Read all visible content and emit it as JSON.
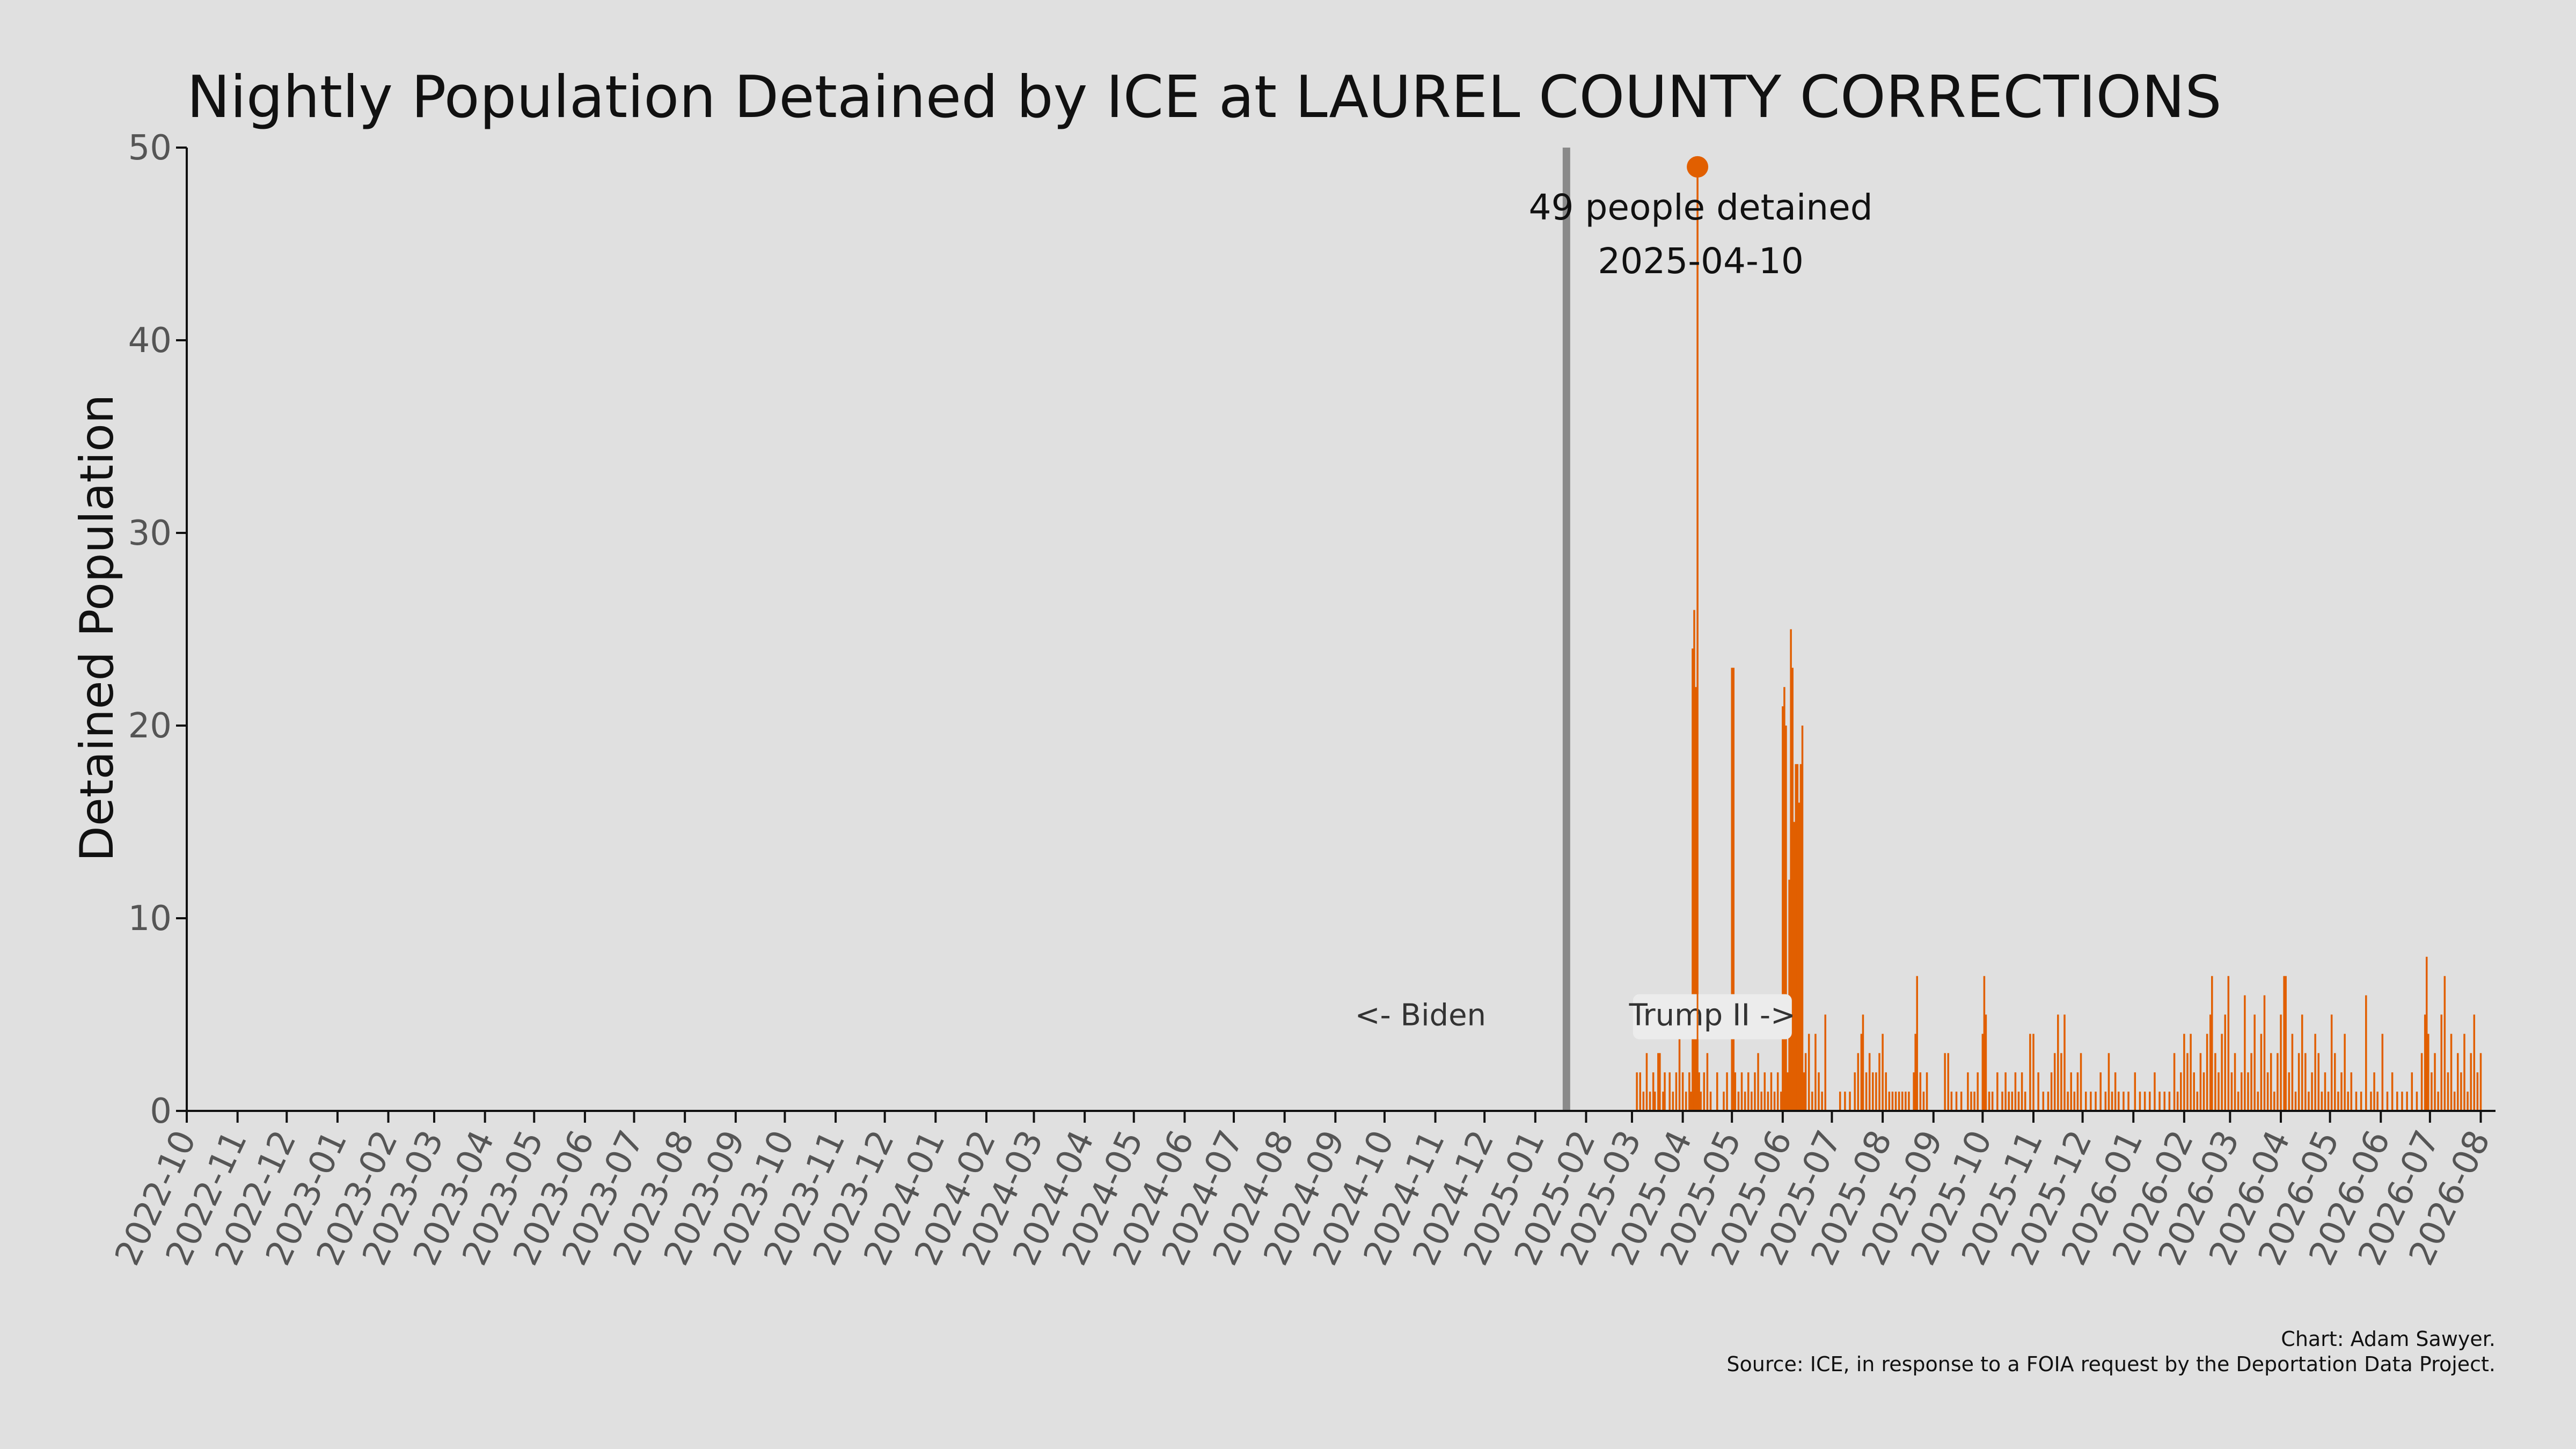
{
  "chart_data": {
    "type": "bar",
    "title": "Nightly Population Detained by ICE at LAUREL COUNTY CORRECTIONS",
    "xlabel": "",
    "ylabel": "Detained Population",
    "ylim": [
      0,
      50
    ],
    "yticks": [
      0,
      10,
      20,
      30,
      40,
      50
    ],
    "xlim": [
      "2022-10-01",
      "2026-08-10"
    ],
    "xticks": [
      "2022-10",
      "2022-11",
      "2022-12",
      "2023-01",
      "2023-02",
      "2023-03",
      "2023-04",
      "2023-05",
      "2023-06",
      "2023-07",
      "2023-08",
      "2023-09",
      "2023-10",
      "2023-11",
      "2023-12",
      "2024-01",
      "2024-02",
      "2024-03",
      "2024-04",
      "2024-05",
      "2024-06",
      "2024-07",
      "2024-08",
      "2024-09",
      "2024-10",
      "2024-11",
      "2024-12",
      "2025-01",
      "2025-02",
      "2025-03",
      "2025-04",
      "2025-05",
      "2025-06",
      "2025-07",
      "2025-08",
      "2025-09",
      "2025-10",
      "2025-11",
      "2025-12",
      "2026-01",
      "2026-02",
      "2026-03",
      "2026-04",
      "2026-05",
      "2026-06",
      "2026-07",
      "2026-08"
    ],
    "grid": false,
    "bar_color": "#e15f00",
    "divider": {
      "date": "2025-01-20",
      "color": "#8a8a8a",
      "left_label": "<- Biden",
      "right_label": "Trump II ->"
    },
    "peak": {
      "date": "2025-04-10",
      "value": 49,
      "label_line1": "49 people detained",
      "label_line2": "2025-04-10"
    },
    "series": [
      {
        "values": [
          [
            "2025-03-04",
            2
          ],
          [
            "2025-03-06",
            2
          ],
          [
            "2025-03-08",
            1
          ],
          [
            "2025-03-10",
            3
          ],
          [
            "2025-03-12",
            1
          ],
          [
            "2025-03-14",
            2
          ],
          [
            "2025-03-15",
            1
          ],
          [
            "2025-03-17",
            3
          ],
          [
            "2025-03-18",
            3
          ],
          [
            "2025-03-20",
            1
          ],
          [
            "2025-03-21",
            2
          ],
          [
            "2025-03-24",
            2
          ],
          [
            "2025-03-26",
            1
          ],
          [
            "2025-03-28",
            2
          ],
          [
            "2025-03-30",
            4
          ],
          [
            "2025-04-01",
            2
          ],
          [
            "2025-04-03",
            1
          ],
          [
            "2025-04-05",
            2
          ],
          [
            "2025-04-06",
            1
          ],
          [
            "2025-04-07",
            24
          ],
          [
            "2025-04-08",
            26
          ],
          [
            "2025-04-09",
            22
          ],
          [
            "2025-04-10",
            49
          ],
          [
            "2025-04-11",
            2
          ],
          [
            "2025-04-12",
            1
          ],
          [
            "2025-04-14",
            2
          ],
          [
            "2025-04-16",
            3
          ],
          [
            "2025-04-18",
            1
          ],
          [
            "2025-04-22",
            2
          ],
          [
            "2025-04-26",
            1
          ],
          [
            "2025-04-28",
            2
          ],
          [
            "2025-05-01",
            23
          ],
          [
            "2025-05-02",
            23
          ],
          [
            "2025-05-03",
            2
          ],
          [
            "2025-05-05",
            1
          ],
          [
            "2025-05-07",
            2
          ],
          [
            "2025-05-09",
            1
          ],
          [
            "2025-05-11",
            2
          ],
          [
            "2025-05-13",
            1
          ],
          [
            "2025-05-15",
            2
          ],
          [
            "2025-05-17",
            3
          ],
          [
            "2025-05-19",
            1
          ],
          [
            "2025-05-21",
            2
          ],
          [
            "2025-05-23",
            1
          ],
          [
            "2025-05-25",
            2
          ],
          [
            "2025-05-27",
            1
          ],
          [
            "2025-05-29",
            2
          ],
          [
            "2025-05-31",
            1
          ],
          [
            "2025-06-01",
            21
          ],
          [
            "2025-06-02",
            22
          ],
          [
            "2025-06-03",
            20
          ],
          [
            "2025-06-04",
            2
          ],
          [
            "2025-06-05",
            12
          ],
          [
            "2025-06-06",
            25
          ],
          [
            "2025-06-07",
            23
          ],
          [
            "2025-06-08",
            15
          ],
          [
            "2025-06-09",
            18
          ],
          [
            "2025-06-10",
            18
          ],
          [
            "2025-06-11",
            16
          ],
          [
            "2025-06-12",
            18
          ],
          [
            "2025-06-13",
            20
          ],
          [
            "2025-06-14",
            2
          ],
          [
            "2025-06-15",
            3
          ],
          [
            "2025-06-17",
            4
          ],
          [
            "2025-06-19",
            1
          ],
          [
            "2025-06-21",
            4
          ],
          [
            "2025-06-23",
            2
          ],
          [
            "2025-06-25",
            1
          ],
          [
            "2025-06-27",
            5
          ],
          [
            "2025-07-06",
            1
          ],
          [
            "2025-07-09",
            1
          ],
          [
            "2025-07-12",
            1
          ],
          [
            "2025-07-15",
            2
          ],
          [
            "2025-07-17",
            3
          ],
          [
            "2025-07-19",
            4
          ],
          [
            "2025-07-20",
            5
          ],
          [
            "2025-07-22",
            2
          ],
          [
            "2025-07-24",
            3
          ],
          [
            "2025-07-26",
            2
          ],
          [
            "2025-07-28",
            2
          ],
          [
            "2025-07-30",
            3
          ],
          [
            "2025-08-01",
            4
          ],
          [
            "2025-08-03",
            2
          ],
          [
            "2025-08-05",
            1
          ],
          [
            "2025-08-07",
            1
          ],
          [
            "2025-08-09",
            1
          ],
          [
            "2025-08-11",
            1
          ],
          [
            "2025-08-13",
            1
          ],
          [
            "2025-08-15",
            1
          ],
          [
            "2025-08-17",
            1
          ],
          [
            "2025-08-20",
            2
          ],
          [
            "2025-08-21",
            4
          ],
          [
            "2025-08-22",
            7
          ],
          [
            "2025-08-24",
            2
          ],
          [
            "2025-08-26",
            1
          ],
          [
            "2025-08-28",
            2
          ],
          [
            "2025-09-08",
            3
          ],
          [
            "2025-09-10",
            3
          ],
          [
            "2025-09-12",
            1
          ],
          [
            "2025-09-15",
            1
          ],
          [
            "2025-09-18",
            1
          ],
          [
            "2025-09-22",
            2
          ],
          [
            "2025-09-24",
            1
          ],
          [
            "2025-09-26",
            1
          ],
          [
            "2025-09-28",
            2
          ],
          [
            "2025-10-01",
            4
          ],
          [
            "2025-10-02",
            7
          ],
          [
            "2025-10-03",
            5
          ],
          [
            "2025-10-05",
            1
          ],
          [
            "2025-10-07",
            1
          ],
          [
            "2025-10-10",
            2
          ],
          [
            "2025-10-13",
            1
          ],
          [
            "2025-10-15",
            2
          ],
          [
            "2025-10-17",
            1
          ],
          [
            "2025-10-19",
            1
          ],
          [
            "2025-10-21",
            2
          ],
          [
            "2025-10-23",
            1
          ],
          [
            "2025-10-25",
            2
          ],
          [
            "2025-10-27",
            1
          ],
          [
            "2025-10-30",
            4
          ],
          [
            "2025-11-01",
            4
          ],
          [
            "2025-11-04",
            2
          ],
          [
            "2025-11-07",
            1
          ],
          [
            "2025-11-10",
            1
          ],
          [
            "2025-11-12",
            2
          ],
          [
            "2025-11-14",
            3
          ],
          [
            "2025-11-16",
            5
          ],
          [
            "2025-11-18",
            3
          ],
          [
            "2025-11-20",
            5
          ],
          [
            "2025-11-22",
            1
          ],
          [
            "2025-11-24",
            2
          ],
          [
            "2025-11-26",
            1
          ],
          [
            "2025-11-28",
            2
          ],
          [
            "2025-11-30",
            3
          ],
          [
            "2025-12-03",
            1
          ],
          [
            "2025-12-06",
            1
          ],
          [
            "2025-12-09",
            1
          ],
          [
            "2025-12-12",
            2
          ],
          [
            "2025-12-15",
            1
          ],
          [
            "2025-12-17",
            3
          ],
          [
            "2025-12-19",
            1
          ],
          [
            "2025-12-21",
            2
          ],
          [
            "2025-12-23",
            1
          ],
          [
            "2025-12-26",
            1
          ],
          [
            "2025-12-29",
            1
          ],
          [
            "2026-01-02",
            2
          ],
          [
            "2026-01-05",
            1
          ],
          [
            "2026-01-08",
            1
          ],
          [
            "2026-01-11",
            1
          ],
          [
            "2026-01-14",
            2
          ],
          [
            "2026-01-17",
            1
          ],
          [
            "2026-01-20",
            1
          ],
          [
            "2026-01-23",
            1
          ],
          [
            "2026-01-26",
            3
          ],
          [
            "2026-01-28",
            1
          ],
          [
            "2026-01-30",
            2
          ],
          [
            "2026-02-01",
            4
          ],
          [
            "2026-02-03",
            3
          ],
          [
            "2026-02-05",
            4
          ],
          [
            "2026-02-07",
            2
          ],
          [
            "2026-02-09",
            1
          ],
          [
            "2026-02-11",
            3
          ],
          [
            "2026-02-13",
            2
          ],
          [
            "2026-02-15",
            4
          ],
          [
            "2026-02-17",
            5
          ],
          [
            "2026-02-18",
            7
          ],
          [
            "2026-02-20",
            3
          ],
          [
            "2026-02-22",
            2
          ],
          [
            "2026-02-24",
            4
          ],
          [
            "2026-02-26",
            5
          ],
          [
            "2026-02-28",
            7
          ],
          [
            "2026-03-02",
            2
          ],
          [
            "2026-03-04",
            3
          ],
          [
            "2026-03-06",
            1
          ],
          [
            "2026-03-08",
            2
          ],
          [
            "2026-03-10",
            6
          ],
          [
            "2026-03-12",
            2
          ],
          [
            "2026-03-14",
            3
          ],
          [
            "2026-03-16",
            5
          ],
          [
            "2026-03-18",
            1
          ],
          [
            "2026-03-20",
            4
          ],
          [
            "2026-03-22",
            6
          ],
          [
            "2026-03-24",
            2
          ],
          [
            "2026-03-26",
            3
          ],
          [
            "2026-03-28",
            1
          ],
          [
            "2026-03-30",
            3
          ],
          [
            "2026-04-01",
            5
          ],
          [
            "2026-04-03",
            7
          ],
          [
            "2026-04-04",
            7
          ],
          [
            "2026-04-06",
            2
          ],
          [
            "2026-04-08",
            4
          ],
          [
            "2026-04-10",
            1
          ],
          [
            "2026-04-12",
            3
          ],
          [
            "2026-04-14",
            5
          ],
          [
            "2026-04-16",
            3
          ],
          [
            "2026-04-18",
            1
          ],
          [
            "2026-04-20",
            2
          ],
          [
            "2026-04-22",
            4
          ],
          [
            "2026-04-24",
            3
          ],
          [
            "2026-04-26",
            1
          ],
          [
            "2026-04-28",
            2
          ],
          [
            "2026-04-30",
            1
          ],
          [
            "2026-05-02",
            5
          ],
          [
            "2026-05-04",
            3
          ],
          [
            "2026-05-06",
            1
          ],
          [
            "2026-05-08",
            2
          ],
          [
            "2026-05-10",
            4
          ],
          [
            "2026-05-12",
            1
          ],
          [
            "2026-05-14",
            2
          ],
          [
            "2026-05-17",
            1
          ],
          [
            "2026-05-20",
            1
          ],
          [
            "2026-05-23",
            6
          ],
          [
            "2026-05-26",
            1
          ],
          [
            "2026-05-28",
            2
          ],
          [
            "2026-05-30",
            1
          ],
          [
            "2026-06-02",
            4
          ],
          [
            "2026-06-05",
            1
          ],
          [
            "2026-06-08",
            2
          ],
          [
            "2026-06-11",
            1
          ],
          [
            "2026-06-14",
            1
          ],
          [
            "2026-06-17",
            1
          ],
          [
            "2026-06-20",
            2
          ],
          [
            "2026-06-23",
            1
          ],
          [
            "2026-06-26",
            3
          ],
          [
            "2026-06-28",
            5
          ],
          [
            "2026-06-29",
            8
          ],
          [
            "2026-06-30",
            4
          ],
          [
            "2026-07-02",
            2
          ],
          [
            "2026-07-04",
            3
          ],
          [
            "2026-07-06",
            1
          ],
          [
            "2026-07-08",
            5
          ],
          [
            "2026-07-10",
            7
          ],
          [
            "2026-07-12",
            2
          ],
          [
            "2026-07-14",
            4
          ],
          [
            "2026-07-16",
            1
          ],
          [
            "2026-07-18",
            3
          ],
          [
            "2026-07-20",
            2
          ],
          [
            "2026-07-22",
            4
          ],
          [
            "2026-07-24",
            1
          ],
          [
            "2026-07-26",
            3
          ],
          [
            "2026-07-28",
            5
          ],
          [
            "2026-07-30",
            2
          ],
          [
            "2026-08-01",
            3
          ]
        ]
      }
    ]
  },
  "credits": {
    "line1": "Chart: Adam Sawyer.",
    "line2": "Source: ICE, in response to a FOIA request by the Deportation Data Project."
  }
}
